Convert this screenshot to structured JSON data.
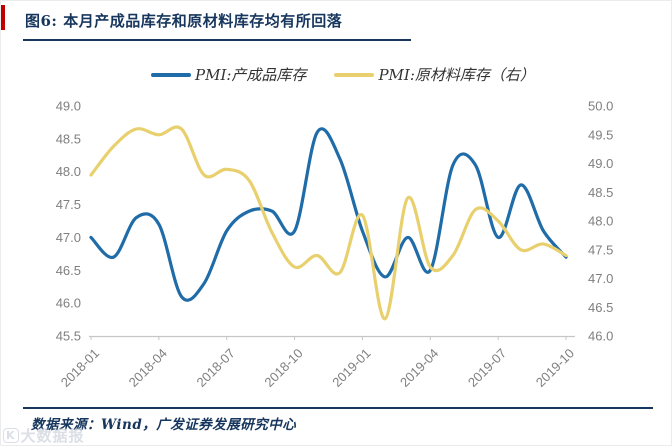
{
  "title": {
    "text": "图6:  本月产成品库存和原材料库存均有所回落"
  },
  "footer": {
    "text": "数据来源：Wind，广发证券发展研究中心"
  },
  "watermark": {
    "logo": "K",
    "text": "大数据报"
  },
  "colors": {
    "accent_red": "#c00000",
    "title_navy": "#17365d",
    "axis_gray": "#7f7f7f",
    "axis_line": "#c6c6c6",
    "series_blue": "#1f6ca8",
    "series_yellow": "#e9d06f"
  },
  "chart_data": {
    "type": "line",
    "smooth": true,
    "grid": false,
    "legend_position": "top",
    "title": "图6: 本月产成品库存和原材料库存均有所回落",
    "x": [
      "2018-01",
      "2018-02",
      "2018-03",
      "2018-04",
      "2018-05",
      "2018-06",
      "2018-07",
      "2018-08",
      "2018-09",
      "2018-10",
      "2018-11",
      "2018-12",
      "2019-01",
      "2019-02",
      "2019-03",
      "2019-04",
      "2019-05",
      "2019-06",
      "2019-07",
      "2019-08",
      "2019-09",
      "2019-10"
    ],
    "x_tick_labels": [
      "2018-01",
      "2018-04",
      "2018-07",
      "2018-10",
      "2019-01",
      "2019-04",
      "2019-07",
      "2019-10"
    ],
    "x_tick_month_index": [
      0,
      3,
      6,
      9,
      12,
      15,
      18,
      21
    ],
    "series": [
      {
        "name": "PMI:产成品库存",
        "axis": "left",
        "color": "#1f6ca8",
        "values": [
          47.0,
          46.7,
          47.3,
          47.2,
          46.1,
          46.3,
          47.1,
          47.4,
          47.4,
          47.1,
          48.6,
          48.2,
          47.1,
          46.4,
          47.0,
          46.5,
          48.1,
          48.1,
          47.0,
          47.8,
          47.1,
          46.7
        ]
      },
      {
        "name": "PMI:原材料库存（右）",
        "axis": "right",
        "color": "#e9d06f",
        "values": [
          48.8,
          49.3,
          49.6,
          49.5,
          49.6,
          48.8,
          48.9,
          48.7,
          47.8,
          47.2,
          47.4,
          47.1,
          48.1,
          46.3,
          48.4,
          47.2,
          47.4,
          48.2,
          48.0,
          47.5,
          47.6,
          47.4
        ]
      }
    ],
    "left_axis": {
      "min": 45.5,
      "max": 49.0,
      "step": 0.5,
      "ticks": [
        "49.0",
        "48.5",
        "48.0",
        "47.5",
        "47.0",
        "46.5",
        "46.0",
        "45.5"
      ]
    },
    "right_axis": {
      "min": 46.0,
      "max": 50.0,
      "step": 0.5,
      "ticks": [
        "50.0",
        "49.5",
        "49.0",
        "48.5",
        "48.0",
        "47.5",
        "47.0",
        "46.5",
        "46.0"
      ]
    }
  }
}
